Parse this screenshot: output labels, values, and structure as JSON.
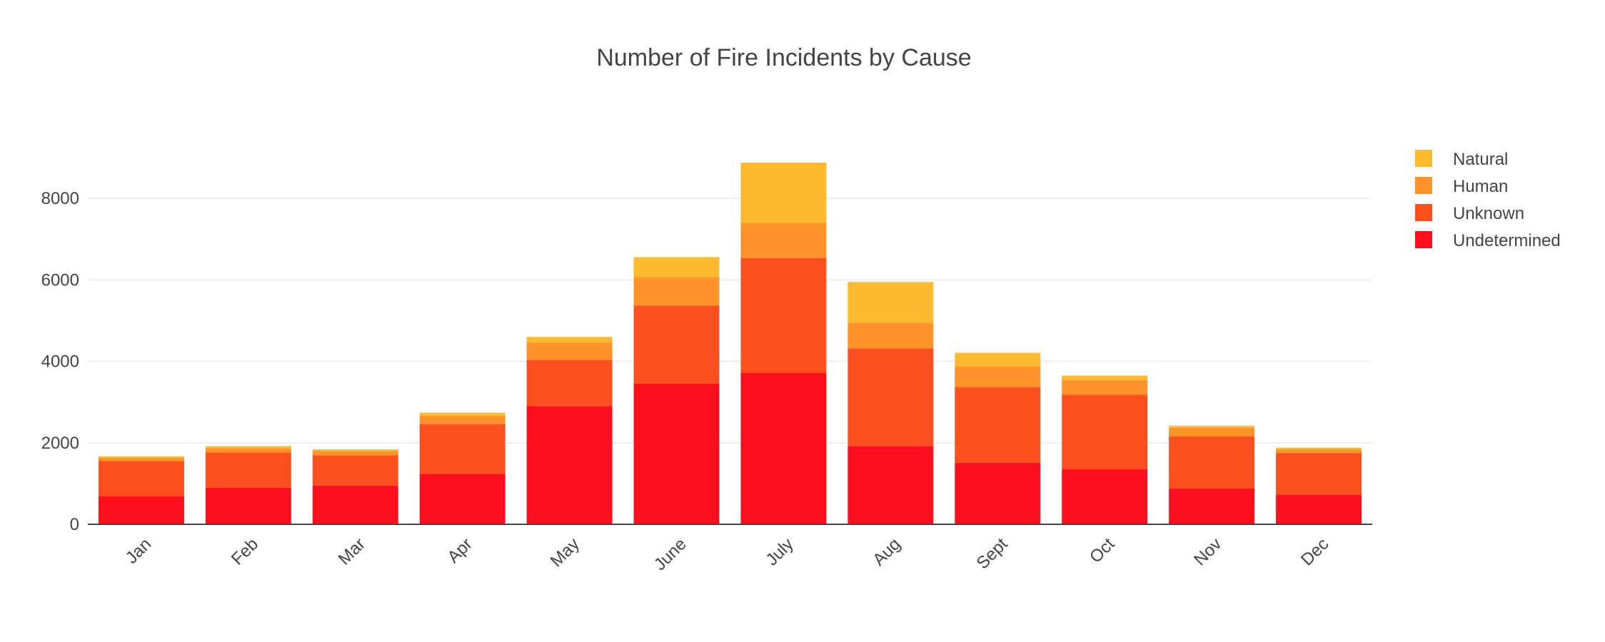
{
  "chart_data": {
    "type": "bar",
    "stacked": true,
    "title": "Number of Fire Incidents by Cause",
    "xlabel": "",
    "ylabel": "",
    "categories": [
      "Jan",
      "Feb",
      "Mar",
      "Apr",
      "May",
      "June",
      "July",
      "Aug",
      "Sept",
      "Oct",
      "Nov",
      "Dec"
    ],
    "ylim": [
      0,
      9370
    ],
    "yticks": [
      0,
      2000,
      4000,
      6000,
      8000
    ],
    "grid": true,
    "legend_position": "top-right",
    "series": [
      {
        "name": "Undetermined",
        "color": "#fe0f1e",
        "values": [
          690,
          900,
          950,
          1240,
          2900,
          3450,
          3720,
          1920,
          1510,
          1360,
          880,
          730
        ]
      },
      {
        "name": "Unknown",
        "color": "#fe501e",
        "values": [
          860,
          860,
          740,
          1220,
          1140,
          1920,
          2820,
          2400,
          1860,
          1820,
          1280,
          1020
        ]
      },
      {
        "name": "Human",
        "color": "#fe9429",
        "values": [
          80,
          110,
          110,
          200,
          420,
          700,
          860,
          630,
          500,
          360,
          210,
          80
        ]
      },
      {
        "name": "Natural",
        "color": "#feba2e",
        "values": [
          40,
          50,
          40,
          80,
          140,
          490,
          1480,
          1000,
          340,
          110,
          50,
          50
        ]
      }
    ]
  }
}
